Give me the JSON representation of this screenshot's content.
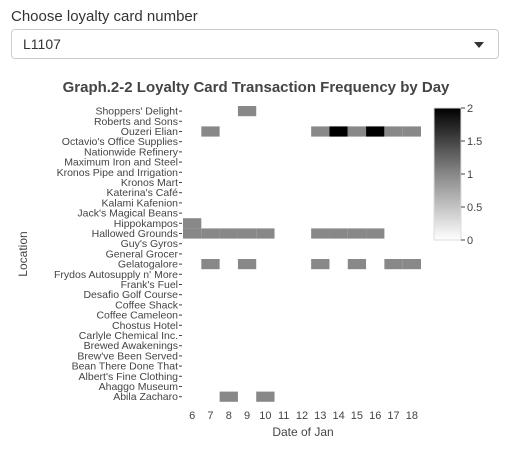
{
  "selector": {
    "label": "Choose loyalty card number",
    "selected": "L1107"
  },
  "chart_data": {
    "type": "heatmap",
    "title": "Graph.2-2 Loyalty Card Transaction Frequency by Day",
    "xlabel": "Date of Jan",
    "ylabel": "Location",
    "x": [
      6,
      7,
      8,
      9,
      10,
      11,
      12,
      13,
      14,
      15,
      16,
      17,
      18
    ],
    "y": [
      "Shoppers' Delight",
      "Roberts and Sons",
      "Ouzeri Elian",
      "Octavio's Office Supplies",
      "Nationwide Refinery",
      "Maximum Iron and Steel",
      "Kronos Pipe and Irrigation",
      "Kronos Mart",
      "Katerina's Café",
      "Kalami Kafenion",
      "Jack's Magical Beans",
      "Hippokampos",
      "Hallowed Grounds",
      "Guy's Gyros",
      "General Grocer",
      "Gelatogalore",
      "Frydos Autosupply n' More",
      "Frank's Fuel",
      "Desafio Golf Course",
      "Coffee Shack",
      "Coffee Cameleon",
      "Chostus Hotel",
      "Carlyle Chemical Inc.",
      "Brewed Awakenings",
      "Brew've Been Served",
      "Bean There Done That",
      "Albert's Fine Clothing",
      "Ahaggo Museum",
      "Abila Zacharo"
    ],
    "cells": [
      {
        "y": "Shoppers' Delight",
        "x": 9,
        "value": 1
      },
      {
        "y": "Ouzeri Elian",
        "x": 7,
        "value": 1
      },
      {
        "y": "Ouzeri Elian",
        "x": 13,
        "value": 1
      },
      {
        "y": "Ouzeri Elian",
        "x": 14,
        "value": 2
      },
      {
        "y": "Ouzeri Elian",
        "x": 15,
        "value": 1
      },
      {
        "y": "Ouzeri Elian",
        "x": 16,
        "value": 2
      },
      {
        "y": "Ouzeri Elian",
        "x": 17,
        "value": 1
      },
      {
        "y": "Ouzeri Elian",
        "x": 18,
        "value": 1
      },
      {
        "y": "Hippokampos",
        "x": 6,
        "value": 1
      },
      {
        "y": "Hallowed Grounds",
        "x": 6,
        "value": 1
      },
      {
        "y": "Hallowed Grounds",
        "x": 7,
        "value": 1
      },
      {
        "y": "Hallowed Grounds",
        "x": 8,
        "value": 1
      },
      {
        "y": "Hallowed Grounds",
        "x": 9,
        "value": 1
      },
      {
        "y": "Hallowed Grounds",
        "x": 10,
        "value": 1
      },
      {
        "y": "Hallowed Grounds",
        "x": 13,
        "value": 1
      },
      {
        "y": "Hallowed Grounds",
        "x": 14,
        "value": 1
      },
      {
        "y": "Hallowed Grounds",
        "x": 15,
        "value": 1
      },
      {
        "y": "Hallowed Grounds",
        "x": 16,
        "value": 1
      },
      {
        "y": "Gelatogalore",
        "x": 7,
        "value": 1
      },
      {
        "y": "Gelatogalore",
        "x": 9,
        "value": 1
      },
      {
        "y": "Gelatogalore",
        "x": 13,
        "value": 1
      },
      {
        "y": "Gelatogalore",
        "x": 15,
        "value": 1
      },
      {
        "y": "Gelatogalore",
        "x": 17,
        "value": 1
      },
      {
        "y": "Gelatogalore",
        "x": 18,
        "value": 1
      },
      {
        "y": "Abila Zacharo",
        "x": 8,
        "value": 1
      },
      {
        "y": "Abila Zacharo",
        "x": 10,
        "value": 1
      }
    ],
    "colorbar": {
      "min": 0,
      "max": 2,
      "ticks": [
        "0",
        "0.5",
        "1",
        "1.5",
        "2"
      ],
      "colors": [
        "#ffffff",
        "#888888",
        "#000000"
      ]
    },
    "grid": false
  }
}
